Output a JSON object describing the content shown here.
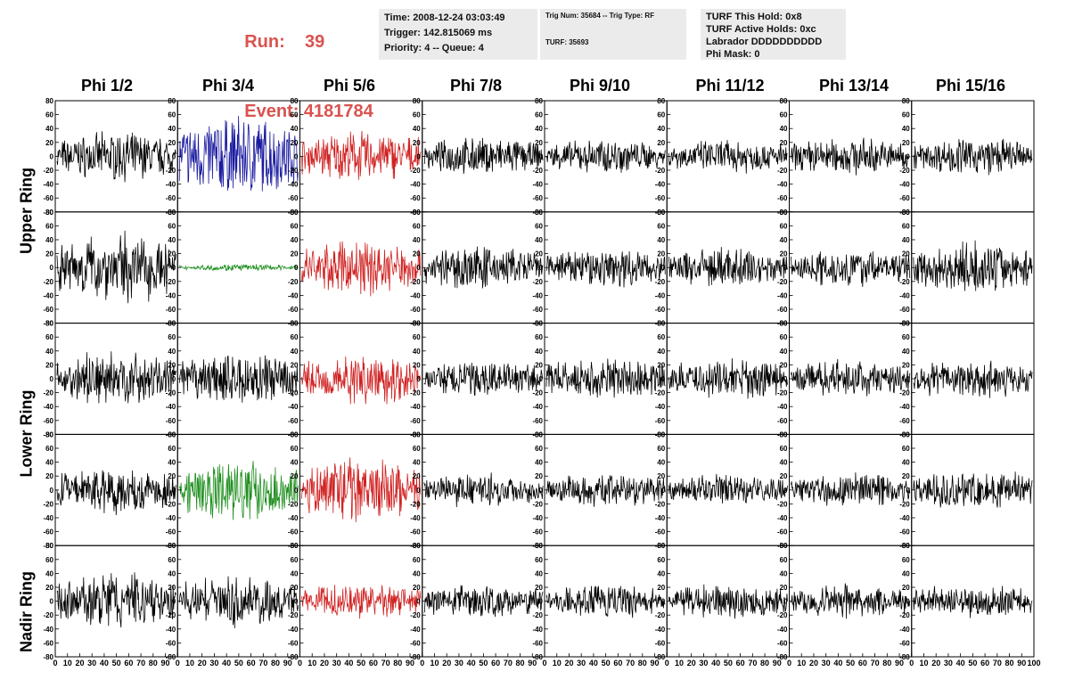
{
  "header": {
    "run_label": "Run:",
    "run_value": "39",
    "event_label": "Event:",
    "event_value": "4181784",
    "accent_color": "#d9534f"
  },
  "info_panel_1": {
    "time": "Time: 2008-12-24 03:03:49",
    "trigger": "Trigger: 142.815069 ms",
    "priority": "Priority: 4 -- Queue: 4"
  },
  "info_panel_2": {
    "trig": "Trig Num: 35684 -- Trig Type: RF",
    "turf": "TURF: 35693"
  },
  "info_panel_3": {
    "hold": "TURF This Hold: 0x8",
    "active": "TURF Active Holds: 0xc",
    "labrador": "Labrador DDDDDDDDDD",
    "phimask": "Phi Mask: 0"
  },
  "chart_data": {
    "type": "line",
    "columns": [
      "Phi 1/2",
      "Phi 3/4",
      "Phi 5/6",
      "Phi 7/8",
      "Phi 9/10",
      "Phi 11/12",
      "Phi 13/14",
      "Phi 15/16"
    ],
    "rows": [
      "Upper Ring",
      "",
      "Lower Ring",
      "",
      "Nadir Ring"
    ],
    "xlim": [
      0,
      100
    ],
    "ylim": [
      -80,
      80
    ],
    "x_ticks": [
      "0",
      "10",
      "20",
      "30",
      "40",
      "50",
      "60",
      "70",
      "80",
      "90",
      "100"
    ],
    "y_ticks": [
      "-80",
      "-60",
      "-40",
      "-20",
      "0",
      "20",
      "40",
      "60",
      "80"
    ],
    "trace_colors": [
      [
        "#000000",
        "#1a1aa0",
        "#d02020",
        "#000000",
        "#000000",
        "#000000",
        "#000000",
        "#000000"
      ],
      [
        "#000000",
        "#1f8f1f",
        "#d02020",
        "#000000",
        "#000000",
        "#000000",
        "#000000",
        "#000000"
      ],
      [
        "#000000",
        "#000000",
        "#d02020",
        "#000000",
        "#000000",
        "#000000",
        "#000000",
        "#000000"
      ],
      [
        "#000000",
        "#1f8f1f",
        "#d02020",
        "#000000",
        "#000000",
        "#000000",
        "#000000",
        "#000000"
      ],
      [
        "#000000",
        "#000000",
        "#d02020",
        "#000000",
        "#000000",
        "#000000",
        "#000000",
        "#000000"
      ]
    ],
    "amplitudes": [
      [
        28,
        48,
        30,
        22,
        20,
        20,
        22,
        22
      ],
      [
        42,
        4,
        32,
        26,
        24,
        24,
        22,
        30
      ],
      [
        32,
        30,
        30,
        22,
        24,
        24,
        22,
        24
      ],
      [
        28,
        36,
        38,
        20,
        20,
        18,
        20,
        24
      ],
      [
        34,
        30,
        20,
        20,
        20,
        20,
        20,
        20
      ]
    ]
  }
}
